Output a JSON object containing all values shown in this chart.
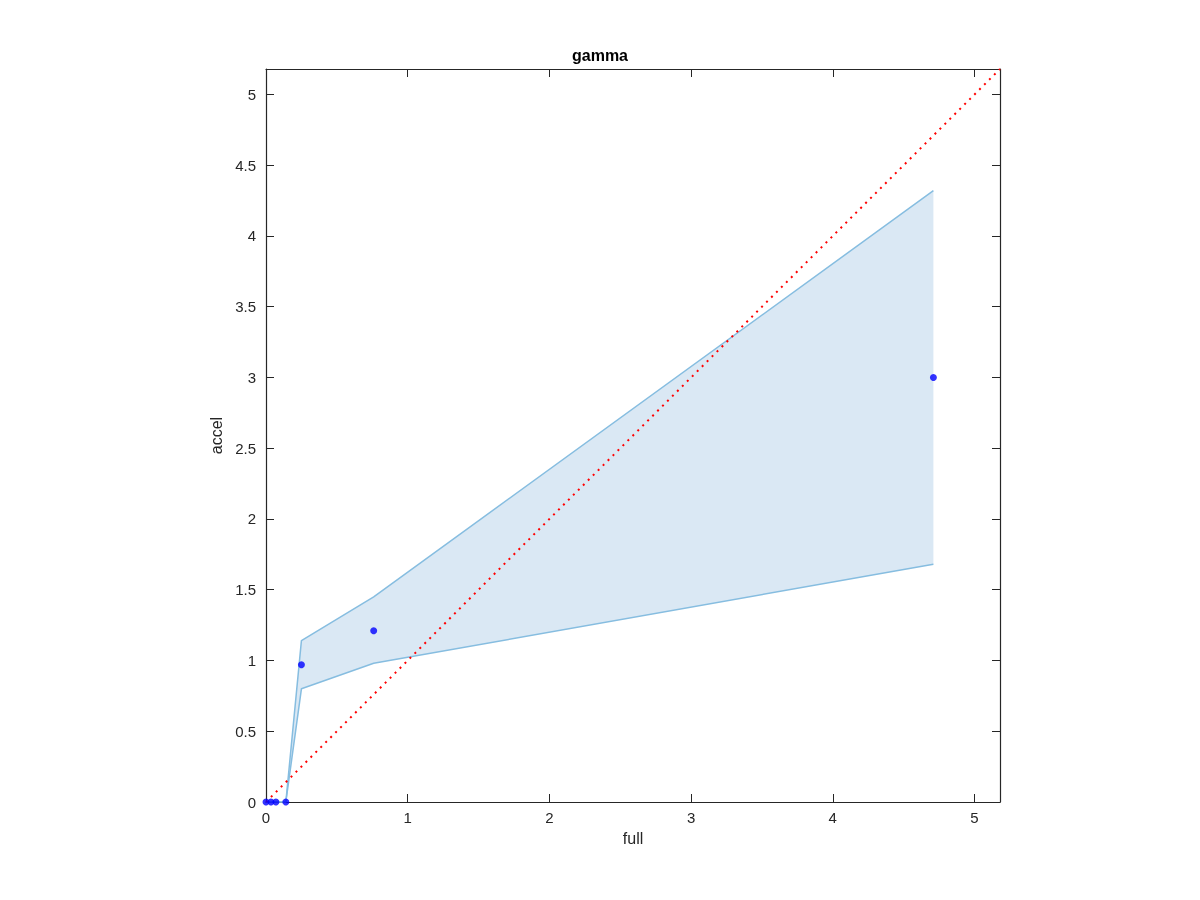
{
  "chart_data": {
    "type": "scatter",
    "title": "gamma",
    "xlabel": "full",
    "ylabel": "accel",
    "xlim": [
      0,
      5.18
    ],
    "ylim": [
      0,
      5.18
    ],
    "xticks": [
      0,
      1,
      2,
      3,
      4,
      5
    ],
    "yticks": [
      0,
      0.5,
      1,
      1.5,
      2,
      2.5,
      3,
      3.5,
      4,
      4.5,
      5
    ],
    "grid": false,
    "marker": "circle",
    "series": [
      {
        "color": "#0000ff",
        "x": [
          0,
          0.035,
          0.07,
          0.14,
          0.25,
          0.76,
          4.71
        ],
        "values": [
          0,
          0,
          0,
          0,
          0.97,
          1.21,
          3.0
        ],
        "lower": [
          0,
          0,
          0,
          0,
          0.8,
          0.98,
          1.68
        ],
        "upper": [
          0,
          0,
          0,
          0,
          1.14,
          1.45,
          4.32
        ]
      },
      {
        "type": "line",
        "color": "#ff0000",
        "line_style": "dotted",
        "marker": "none",
        "x": [
          0,
          5.18
        ],
        "values": [
          0,
          5.18
        ]
      }
    ]
  }
}
